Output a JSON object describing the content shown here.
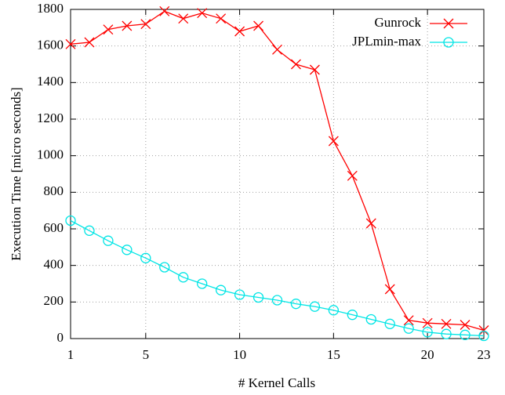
{
  "chart_data": {
    "type": "line",
    "xlabel": "# Kernel Calls",
    "ylabel": "Execution Time [micro seconds]",
    "x": [
      1,
      2,
      3,
      4,
      5,
      6,
      7,
      8,
      9,
      10,
      11,
      12,
      13,
      14,
      15,
      16,
      17,
      18,
      19,
      20,
      21,
      22,
      23
    ],
    "series": [
      {
        "name": "Gunrock",
        "color": "#ff0000",
        "marker": "x",
        "values": [
          1610,
          1620,
          1690,
          1710,
          1720,
          1790,
          1750,
          1780,
          1750,
          1680,
          1710,
          1580,
          1500,
          1470,
          1080,
          890,
          630,
          270,
          100,
          85,
          80,
          75,
          45
        ]
      },
      {
        "name": "JPLmin-max",
        "color": "#00e5e5",
        "marker": "circle",
        "values": [
          645,
          590,
          535,
          485,
          440,
          390,
          335,
          300,
          265,
          240,
          225,
          210,
          190,
          175,
          155,
          130,
          105,
          80,
          55,
          35,
          25,
          20,
          15
        ]
      }
    ],
    "xlim": [
      1,
      23
    ],
    "xticks": [
      1,
      5,
      10,
      15,
      20,
      23
    ],
    "ylim": [
      0,
      1800
    ],
    "yticks": [
      0,
      200,
      400,
      600,
      800,
      1000,
      1200,
      1400,
      1600,
      1800
    ],
    "grid": true,
    "legend": "top-right"
  }
}
